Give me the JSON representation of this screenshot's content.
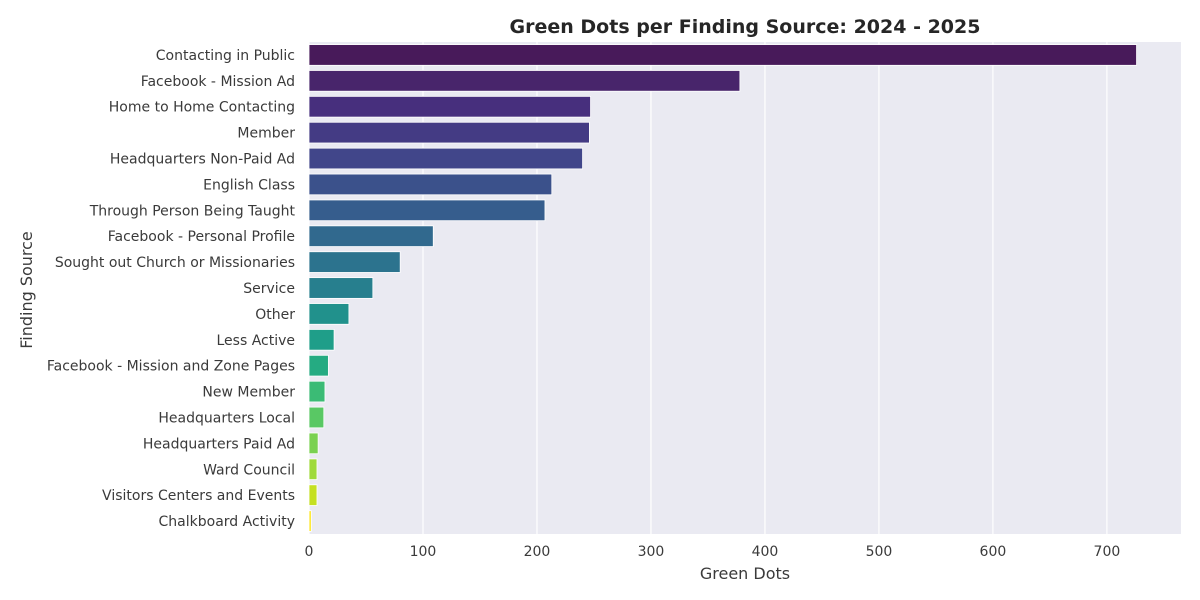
{
  "chart_data": {
    "type": "bar",
    "orientation": "horizontal",
    "title": "Green Dots per Finding Source: 2024 - 2025",
    "xlabel": "Green Dots",
    "ylabel": "Finding Source",
    "xlim": [
      0,
      765
    ],
    "xticks": [
      "0",
      "100",
      "200",
      "300",
      "400",
      "500",
      "600",
      "700"
    ],
    "grid": true,
    "background": "#eaeaf2",
    "palette": "viridis",
    "categories": [
      "Contacting in Public",
      "Facebook - Mission Ad",
      "Home to Home Contacting",
      "Member",
      "Headquarters Non-Paid Ad",
      "English Class",
      "Through Person Being Taught",
      "Facebook - Personal Profile",
      "Sought out Church or Missionaries",
      "Service",
      "Other",
      "Less Active",
      "Facebook - Mission and Zone Pages",
      "New Member",
      "Headquarters Local",
      "Headquarters Paid Ad",
      "Ward Council",
      "Visitors Centers and Events",
      "Chalkboard Activity"
    ],
    "values": [
      726,
      378,
      247,
      246,
      240,
      213,
      207,
      109,
      80,
      56,
      35,
      22,
      17,
      14,
      13,
      8,
      7,
      7,
      2
    ],
    "colors": [
      "#481a5a",
      "#48256b",
      "#472f7d",
      "#443b84",
      "#41468a",
      "#3b518b",
      "#365d8d",
      "#31698e",
      "#2c738e",
      "#277f8e",
      "#21918c",
      "#1f9e89",
      "#25ab82",
      "#3bbb75",
      "#59c864",
      "#7ad151",
      "#9fda3a",
      "#c5e021",
      "#fde725"
    ]
  }
}
